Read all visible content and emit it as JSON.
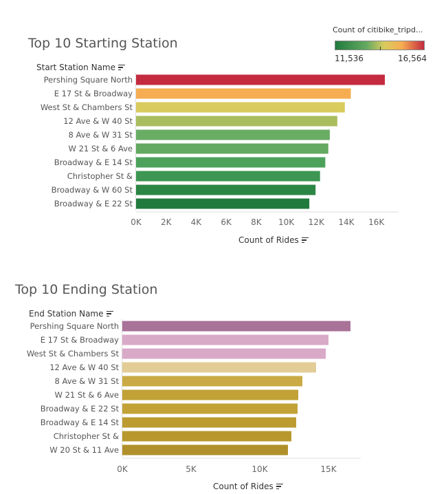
{
  "chart_data": [
    {
      "type": "bar",
      "orientation": "horizontal",
      "title": "Top 10 Starting Station",
      "row_header": "Start Station Name",
      "xlabel": "Count of Rides",
      "categories": [
        "Pershing Square North",
        "E 17 St & Broadway",
        "West St & Chambers St",
        "12 Ave & W 40 St",
        "8 Ave & W 31 St",
        "W 21 St & 6 Ave",
        "Broadway & E 14 St",
        "Christopher St &",
        "Broadway & W 60 St",
        "Broadway & E 22 St"
      ],
      "values": [
        16564,
        14300,
        13900,
        13400,
        12900,
        12800,
        12600,
        12250,
        11950,
        11536
      ],
      "xlim": [
        0,
        16564
      ],
      "xticks": [
        "0K",
        "2K",
        "4K",
        "6K",
        "8K",
        "10K",
        "12K",
        "14K",
        "16K"
      ],
      "xtick_values": [
        0,
        2000,
        4000,
        6000,
        8000,
        10000,
        12000,
        14000,
        16000
      ],
      "colors": [
        "#c42b3f",
        "#f6ad52",
        "#d9cb5d",
        "#a9bd5e",
        "#69ad64",
        "#63a961",
        "#4ca25b",
        "#3d9651",
        "#2b8544",
        "#217a3d"
      ],
      "legend": {
        "title": "Count of citibike_tripd...",
        "min_label": "11,536",
        "max_label": "16,564",
        "placement": "top-right"
      }
    },
    {
      "type": "bar",
      "orientation": "horizontal",
      "title": "Top 10 Ending Station",
      "row_header": "End Station Name",
      "xlabel": "Count of Rides",
      "categories": [
        "Pershing Square North",
        "E 17 St & Broadway",
        "West St & Chambers St",
        "12 Ave & W 40 St",
        "8 Ave & W 31 St",
        "W 21 St & 6 Ave",
        "Broadway & E 22 St",
        "Broadway & E 14 St",
        "Christopher St &",
        "W 20 St & 11 Ave"
      ],
      "values": [
        16600,
        15000,
        14800,
        14100,
        13100,
        12800,
        12750,
        12650,
        12300,
        12050
      ],
      "xlim": [
        0,
        17000
      ],
      "xticks": [
        "0K",
        "5K",
        "10K",
        "15K"
      ],
      "xtick_values": [
        0,
        5000,
        10000,
        15000
      ],
      "colors": [
        "#a97299",
        "#d9a9c8",
        "#d9a9c8",
        "#e3cd97",
        "#c9aa44",
        "#c2a236",
        "#c2a236",
        "#bc9c31",
        "#b8982e",
        "#b0902a"
      ]
    }
  ]
}
